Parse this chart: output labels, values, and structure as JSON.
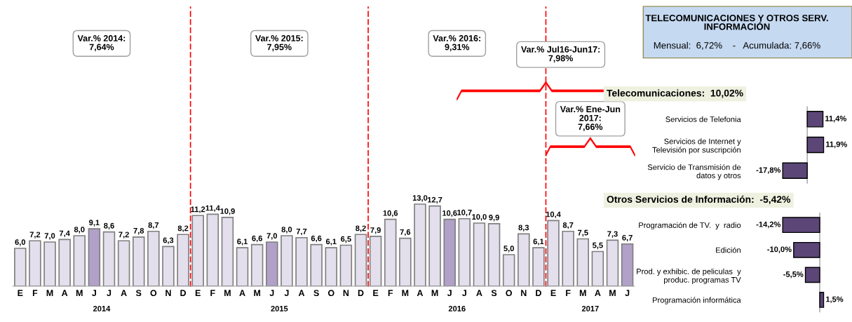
{
  "chart_data": [
    {
      "type": "bar",
      "xlabel": "2014",
      "categories": [
        "E",
        "F",
        "M",
        "A",
        "M",
        "J",
        "J",
        "A",
        "S",
        "O",
        "N",
        "D"
      ],
      "tick_labels": "x",
      "values": [
        6.0,
        7.2,
        7.0,
        7.4,
        8.0,
        9.1,
        8.6,
        7.2,
        7.8,
        8.7,
        6.3,
        8.2
      ],
      "value_labels": [
        "6,0",
        "7,2",
        "7,0",
        "7,4",
        "8,0",
        "9,1",
        "8,6",
        "7,2",
        "7,8",
        "8,7",
        "6,3",
        "8,2"
      ],
      "colors": [
        "#e4dfec",
        "#e4dfec",
        "#e4dfec",
        "#e4dfec",
        "#e4dfec",
        "#b1a0c7",
        "#e4dfec",
        "#e4dfec",
        "#e4dfec",
        "#e4dfec",
        "#e4dfec",
        "#e4dfec"
      ],
      "annotations": [
        "Var.% 2014:\n7,64%"
      ]
    },
    {
      "type": "bar",
      "xlabel": "2015",
      "categories": [
        "E",
        "F",
        "M",
        "A",
        "M",
        "J",
        "J",
        "A",
        "S",
        "O",
        "N",
        "D"
      ],
      "tick_labels": "x",
      "values": [
        11.2,
        11.4,
        10.9,
        6.1,
        6.6,
        7.0,
        8.0,
        7.7,
        6.6,
        6.1,
        6.5,
        8.2
      ],
      "value_labels": [
        "11,2",
        "11,4",
        "10,9",
        "6,1",
        "6,6",
        "7,0",
        "8,0",
        "7,7",
        "6,6",
        "6,1",
        "6,5",
        "8,2"
      ],
      "colors": [
        "#e4dfec",
        "#e4dfec",
        "#e4dfec",
        "#e4dfec",
        "#e4dfec",
        "#b1a0c7",
        "#e4dfec",
        "#e4dfec",
        "#e4dfec",
        "#e4dfec",
        "#e4dfec",
        "#e4dfec"
      ],
      "annotations": [
        "Var.% 2015:\n7,95%"
      ]
    },
    {
      "type": "bar",
      "xlabel": "2016",
      "categories": [
        "E",
        "F",
        "M",
        "A",
        "M",
        "J",
        "J",
        "A",
        "S",
        "O",
        "N",
        "D"
      ],
      "tick_labels": "x",
      "values": [
        7.9,
        10.6,
        7.6,
        13.0,
        12.7,
        10.6,
        10.7,
        10.0,
        9.9,
        5.0,
        8.3,
        6.1
      ],
      "value_labels": [
        "7,9",
        "10,6",
        "7,6",
        "13,0",
        "12,7",
        "10,6",
        "10,7",
        "10,0",
        "9,9",
        "5,0",
        "8,3",
        "6,1"
      ],
      "colors": [
        "#e4dfec",
        "#e4dfec",
        "#e4dfec",
        "#e4dfec",
        "#e4dfec",
        "#b1a0c7",
        "#e4dfec",
        "#e4dfec",
        "#e4dfec",
        "#e4dfec",
        "#e4dfec",
        "#e4dfec"
      ],
      "annotations": [
        "Var.% 2016:\n9,31%"
      ]
    },
    {
      "type": "bar",
      "xlabel": "2017",
      "categories": [
        "E",
        "F",
        "M",
        "A",
        "M",
        "J"
      ],
      "tick_labels": "x",
      "values": [
        10.4,
        8.7,
        7.5,
        5.5,
        7.3,
        6.7
      ],
      "value_labels": [
        "10,4",
        "8,7",
        "7,5",
        "5,5",
        "7,3",
        "6,7"
      ],
      "colors": [
        "#e4dfec",
        "#e4dfec",
        "#e4dfec",
        "#e4dfec",
        "#e4dfec",
        "#b1a0c7"
      ],
      "annotations": [
        "Var.% Jul16-Jun17:\n7,98%",
        "Var.% Ene-Jun\n2017:\n7,66%"
      ]
    },
    {
      "type": "bar",
      "orientation": "horizontal",
      "title": "TELECOMUNICACIONES Y OTROS SERV.\nINFORMACIÓN",
      "subtitle": "Mensual:  6,72%    -   Acumulada: 7,66%",
      "annotations": [
        "Telecomunicaciones:  10,02%"
      ],
      "categories": [
        "Servicios de Telefonia",
        "Servicios de Internet y\nTelevisión por suscripción",
        "Servicio de Transmisión de\ndatos y otros"
      ],
      "values": [
        11.4,
        11.9,
        -17.8
      ],
      "value_labels": [
        "11,4%",
        "11,9%",
        "-17,8%"
      ],
      "color": "#5b4677",
      "tick_labels": "y",
      "ref_lines": [
        {
          "axis": "x",
          "value": 0,
          "color": "#a0a0a0"
        }
      ]
    },
    {
      "type": "bar",
      "orientation": "horizontal",
      "annotations": [
        "Otros Servicios de Información:  -5,42%"
      ],
      "categories": [
        "Programación de TV.  y  radio",
        "Edición",
        "Prod. y exhibic. de peliculas  y\nproduc. programas TV",
        "Programación informática"
      ],
      "values": [
        -14.2,
        -10.0,
        -5.5,
        1.5
      ],
      "value_labels": [
        "-14,2%",
        "-10,0%",
        "-5,5%",
        "1,5%"
      ],
      "color": "#5b4677",
      "tick_labels": "y",
      "ref_lines": [
        {
          "axis": "x",
          "value": 0,
          "color": "#a0a0a0"
        }
      ]
    }
  ]
}
